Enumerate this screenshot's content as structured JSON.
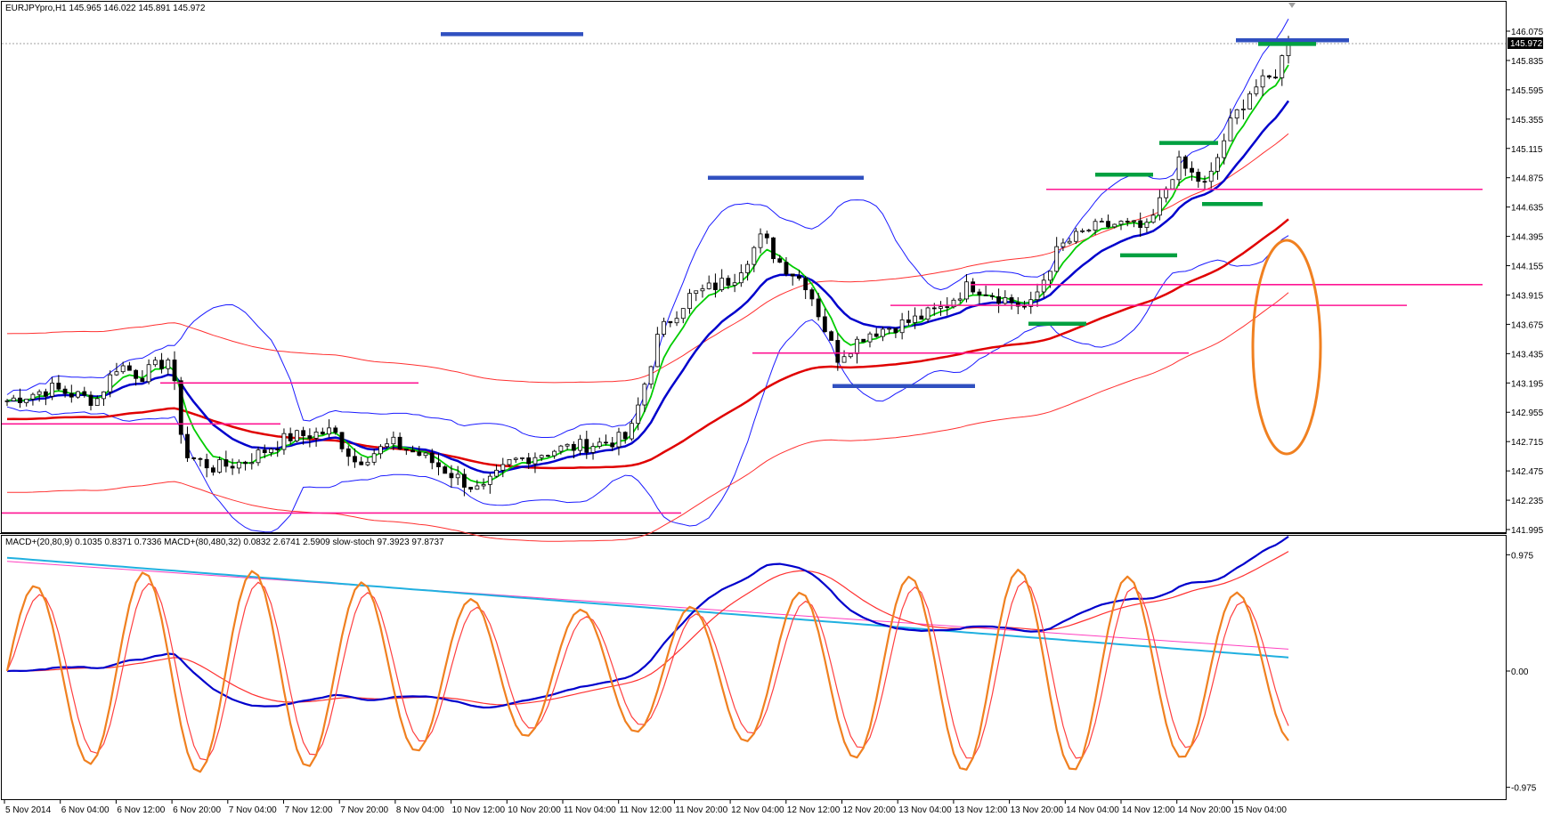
{
  "window": {
    "header_text": "EURJPYpro,H1  145.965 146.022 145.891 145.972",
    "indicator_header": "MACD+(20,80,9) 0.1035 0.8371 0.7336  MACD+(80,480,32) 0.0832 2.6741 2.5909  slow-stoch 97.3923 97.8737"
  },
  "main_axis": {
    "ticks": [
      "146.075",
      "145.835",
      "145.595",
      "145.355",
      "145.115",
      "144.875",
      "144.635",
      "144.395",
      "144.155",
      "143.915",
      "143.675",
      "143.435",
      "143.195",
      "142.955",
      "142.715",
      "142.475",
      "142.235",
      "141.995"
    ],
    "current_price": "145.972"
  },
  "sub_axis": {
    "ticks": [
      "0.975",
      "0.00",
      "-0.975"
    ]
  },
  "time_axis": [
    "5 Nov 2014",
    "6 Nov 04:00",
    "6 Nov 12:00",
    "6 Nov 20:00",
    "7 Nov 04:00",
    "7 Nov 12:00",
    "7 Nov 20:00",
    "8 Nov 04:00",
    "10 Nov 12:00",
    "10 Nov 20:00",
    "11 Nov 04:00",
    "11 Nov 12:00",
    "11 Nov 20:00",
    "12 Nov 04:00",
    "12 Nov 12:00",
    "12 Nov 20:00",
    "13 Nov 04:00",
    "13 Nov 12:00",
    "13 Nov 20:00",
    "14 Nov 04:00",
    "14 Nov 12:00",
    "14 Nov 20:00",
    "15 Nov 04:00"
  ],
  "colors": {
    "bollinger": "#1a1aff",
    "ma_fast": "#00cc00",
    "ma_mid": "#0000cc",
    "ma_slow": "#e00000",
    "envelope": "#ff3030",
    "hline": "#ff1493",
    "hmark_blue": "#3050c0",
    "hmark_green": "#00a040",
    "ellipse": "#f08020",
    "stoch_main": "#f08020",
    "stoch_signal": "#ff4040",
    "macd_fast": "#0000cc",
    "macd_fast_signal": "#ff3030",
    "macd_slow": "#20b0e0",
    "macd_slow_signal": "#ff40c0"
  },
  "chart_data": {
    "type": "candlestick",
    "symbol": "EURJPYpro",
    "timeframe": "H1",
    "ylim": [
      141.995,
      146.075
    ],
    "price_path": [
      {
        "t": 0,
        "p": 143.05
      },
      {
        "t": 0.03,
        "p": 143.15
      },
      {
        "t": 0.06,
        "p": 143.05
      },
      {
        "t": 0.075,
        "p": 143.35
      },
      {
        "t": 0.09,
        "p": 143.25
      },
      {
        "t": 0.11,
        "p": 143.4
      },
      {
        "t": 0.12,
        "p": 142.6
      },
      {
        "t": 0.14,
        "p": 142.5
      },
      {
        "t": 0.16,
        "p": 142.55
      },
      {
        "t": 0.19,
        "p": 142.75
      },
      {
        "t": 0.22,
        "p": 142.8
      },
      {
        "t": 0.235,
        "p": 142.55
      },
      {
        "t": 0.26,
        "p": 142.7
      },
      {
        "t": 0.28,
        "p": 142.6
      },
      {
        "t": 0.3,
        "p": 142.45
      },
      {
        "t": 0.32,
        "p": 142.3
      },
      {
        "t": 0.34,
        "p": 142.55
      },
      {
        "t": 0.37,
        "p": 142.65
      },
      {
        "t": 0.4,
        "p": 142.7
      },
      {
        "t": 0.42,
        "p": 142.75
      },
      {
        "t": 0.44,
        "p": 143.6
      },
      {
        "t": 0.46,
        "p": 143.9
      },
      {
        "t": 0.49,
        "p": 144.05
      },
      {
        "t": 0.51,
        "p": 144.4
      },
      {
        "t": 0.52,
        "p": 144.2
      },
      {
        "t": 0.54,
        "p": 144.0
      },
      {
        "t": 0.56,
        "p": 143.4
      },
      {
        "t": 0.58,
        "p": 143.6
      },
      {
        "t": 0.61,
        "p": 143.7
      },
      {
        "t": 0.63,
        "p": 143.8
      },
      {
        "t": 0.65,
        "p": 144.0
      },
      {
        "t": 0.67,
        "p": 143.9
      },
      {
        "t": 0.69,
        "p": 143.8
      },
      {
        "t": 0.71,
        "p": 144.3
      },
      {
        "t": 0.73,
        "p": 144.45
      },
      {
        "t": 0.75,
        "p": 144.5
      },
      {
        "t": 0.77,
        "p": 144.45
      },
      {
        "t": 0.79,
        "p": 145.0
      },
      {
        "t": 0.81,
        "p": 144.8
      },
      {
        "t": 0.825,
        "p": 145.3
      },
      {
        "t": 0.84,
        "p": 145.6
      },
      {
        "t": 0.855,
        "p": 145.7
      },
      {
        "t": 0.865,
        "p": 145.97
      }
    ],
    "horizontal_levels": [
      143.195,
      142.86,
      142.13,
      143.83,
      144.0,
      143.44,
      144.78
    ],
    "indicators": [
      "Bollinger Bands",
      "Moving averages",
      "MACD+(20,80,9)",
      "MACD+(80,480,32)",
      "slow-stoch"
    ]
  }
}
